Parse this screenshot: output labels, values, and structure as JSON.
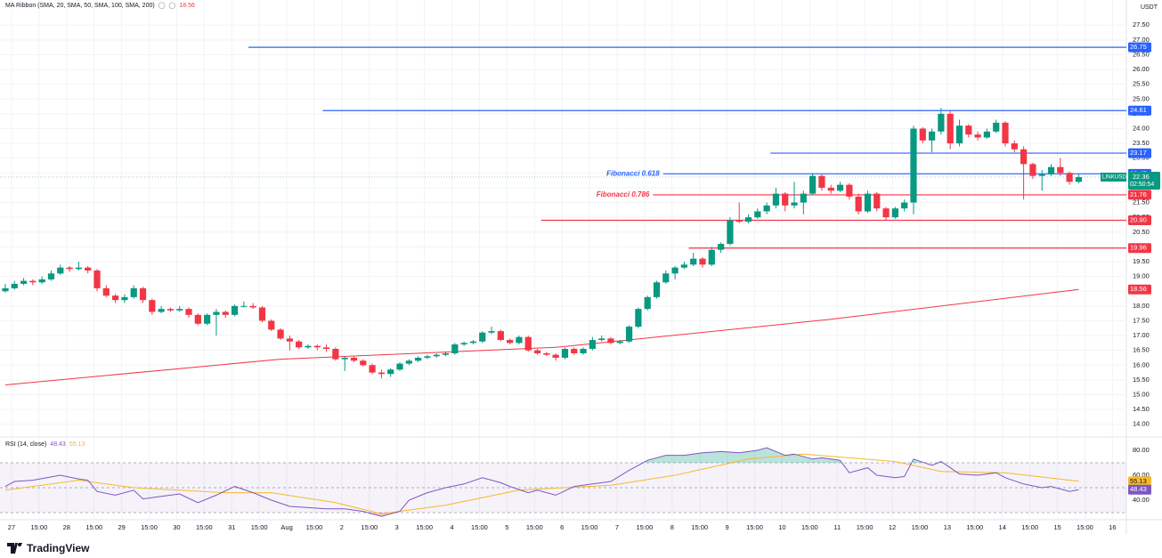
{
  "chart_data": {
    "type": "candlestick",
    "symbol": "LINKUSDT",
    "currency": "USDT",
    "countdown": "02:50:54",
    "indicator_label": "MA Ribbon (SMA, 20, SMA, 50, SMA, 100, SMA, 200)",
    "up_color": "#089981",
    "down_color": "#f23645",
    "grid": true,
    "xlim": [
      -0.58,
      122.2
    ],
    "xticks": [
      {
        "value": 0.68,
        "label": "27"
      },
      {
        "value": 3.68,
        "label": "15:00"
      },
      {
        "value": 6.68,
        "label": "28"
      },
      {
        "value": 9.68,
        "label": "15:00"
      },
      {
        "value": 12.68,
        "label": "29"
      },
      {
        "value": 15.68,
        "label": "15:00"
      },
      {
        "value": 18.68,
        "label": "30"
      },
      {
        "value": 21.68,
        "label": "15:00"
      },
      {
        "value": 24.68,
        "label": "31"
      },
      {
        "value": 27.68,
        "label": "15:00"
      },
      {
        "value": 30.68,
        "label": "Aug"
      },
      {
        "value": 33.68,
        "label": "15:00"
      },
      {
        "value": 36.68,
        "label": "2"
      },
      {
        "value": 39.68,
        "label": "15:00"
      },
      {
        "value": 42.68,
        "label": "3"
      },
      {
        "value": 45.68,
        "label": "15:00"
      },
      {
        "value": 48.68,
        "label": "4"
      },
      {
        "value": 51.68,
        "label": "15:00"
      },
      {
        "value": 54.68,
        "label": "5"
      },
      {
        "value": 57.68,
        "label": "15:00"
      },
      {
        "value": 60.68,
        "label": "6"
      },
      {
        "value": 63.68,
        "label": "15:00"
      },
      {
        "value": 66.68,
        "label": "7"
      },
      {
        "value": 69.68,
        "label": "15:00"
      },
      {
        "value": 72.68,
        "label": "8"
      },
      {
        "value": 75.68,
        "label": "15:00"
      },
      {
        "value": 78.68,
        "label": "9"
      },
      {
        "value": 81.68,
        "label": "15:00"
      },
      {
        "value": 84.68,
        "label": "10"
      },
      {
        "value": 87.68,
        "label": "15:00"
      },
      {
        "value": 90.68,
        "label": "11"
      },
      {
        "value": 93.68,
        "label": "15:00"
      },
      {
        "value": 96.68,
        "label": "12"
      },
      {
        "value": 99.68,
        "label": "15:00"
      },
      {
        "value": 102.68,
        "label": "13"
      },
      {
        "value": 105.68,
        "label": "15:00"
      },
      {
        "value": 108.68,
        "label": "14"
      },
      {
        "value": 111.68,
        "label": "15:00"
      },
      {
        "value": 114.68,
        "label": "15"
      },
      {
        "value": 117.68,
        "label": "15:00"
      },
      {
        "value": 120.68,
        "label": "16"
      }
    ],
    "ylim": [
      13.6,
      28.35
    ],
    "yticks": [
      {
        "value": 27.5,
        "label": "27.50"
      },
      {
        "value": 27,
        "label": "27.00"
      },
      {
        "value": 26.5,
        "label": "26.50"
      },
      {
        "value": 26,
        "label": "26.00"
      },
      {
        "value": 25.5,
        "label": "25.50"
      },
      {
        "value": 25,
        "label": "25.00"
      },
      {
        "value": 24.5,
        "label": "24.50"
      },
      {
        "value": 24,
        "label": "24.00"
      },
      {
        "value": 23.5,
        "label": "23.50"
      },
      {
        "value": 23,
        "label": "23.00"
      },
      {
        "value": 22.5,
        "label": "22.50"
      },
      {
        "value": 22,
        "label": "22.00"
      },
      {
        "value": 21.5,
        "label": "21.50"
      },
      {
        "value": 21,
        "label": "21.00"
      },
      {
        "value": 20.5,
        "label": "20.50"
      },
      {
        "value": 20,
        "label": "20.00"
      },
      {
        "value": 19.5,
        "label": "19.50"
      },
      {
        "value": 19,
        "label": "19.00"
      },
      {
        "value": 18.5,
        "label": "18.50"
      },
      {
        "value": 18,
        "label": "18.00"
      },
      {
        "value": 17.5,
        "label": "17.50"
      },
      {
        "value": 17,
        "label": "17.00"
      },
      {
        "value": 16.5,
        "label": "16.50"
      },
      {
        "value": 16,
        "label": "16.00"
      },
      {
        "value": 15.5,
        "label": "15.50"
      },
      {
        "value": 15,
        "label": "15.00"
      },
      {
        "value": 14.5,
        "label": "14.50"
      },
      {
        "value": 14,
        "label": "14.00"
      }
    ],
    "candles": [
      [
        18.5,
        18.75,
        18.45,
        18.6
      ],
      [
        18.6,
        18.85,
        18.55,
        18.75
      ],
      [
        18.75,
        18.95,
        18.7,
        18.85
      ],
      [
        18.85,
        18.9,
        18.7,
        18.8
      ],
      [
        18.8,
        19.0,
        18.75,
        18.9
      ],
      [
        18.9,
        19.2,
        18.85,
        19.1
      ],
      [
        19.1,
        19.4,
        19.05,
        19.3
      ],
      [
        19.3,
        19.35,
        19.15,
        19.25
      ],
      [
        19.25,
        19.5,
        19.2,
        19.3
      ],
      [
        19.3,
        19.35,
        19.1,
        19.2
      ],
      [
        19.2,
        19.25,
        18.5,
        18.6
      ],
      [
        18.6,
        18.7,
        18.3,
        18.35
      ],
      [
        18.35,
        18.4,
        18.1,
        18.2
      ],
      [
        18.2,
        18.4,
        18.1,
        18.3
      ],
      [
        18.3,
        18.7,
        18.25,
        18.6
      ],
      [
        18.6,
        18.65,
        18.1,
        18.2
      ],
      [
        18.2,
        18.25,
        17.7,
        17.8
      ],
      [
        17.8,
        18.0,
        17.75,
        17.9
      ],
      [
        17.9,
        17.95,
        17.8,
        17.85
      ],
      [
        17.85,
        18.0,
        17.8,
        17.9
      ],
      [
        17.9,
        17.95,
        17.6,
        17.7
      ],
      [
        17.7,
        17.75,
        17.35,
        17.4
      ],
      [
        17.4,
        17.75,
        17.35,
        17.7
      ],
      [
        17.7,
        17.9,
        17.0,
        17.8
      ],
      [
        17.8,
        17.85,
        17.6,
        17.7
      ],
      [
        17.7,
        18.05,
        17.65,
        18.0
      ],
      [
        18.0,
        18.15,
        17.95,
        18.0
      ],
      [
        18.0,
        18.1,
        17.9,
        17.95
      ],
      [
        17.95,
        18.0,
        17.45,
        17.5
      ],
      [
        17.5,
        17.55,
        17.15,
        17.2
      ],
      [
        17.2,
        17.25,
        16.85,
        16.9
      ],
      [
        16.9,
        17.0,
        16.5,
        16.8
      ],
      [
        16.8,
        16.85,
        16.55,
        16.6
      ],
      [
        16.6,
        16.7,
        16.55,
        16.65
      ],
      [
        16.65,
        16.7,
        16.5,
        16.6
      ],
      [
        16.6,
        16.7,
        16.45,
        16.55
      ],
      [
        16.55,
        16.6,
        16.15,
        16.2
      ],
      [
        16.2,
        16.3,
        15.8,
        16.25
      ],
      [
        16.25,
        16.3,
        16.1,
        16.15
      ],
      [
        16.15,
        16.2,
        15.95,
        16.0
      ],
      [
        16.0,
        16.05,
        15.7,
        15.75
      ],
      [
        15.75,
        15.85,
        15.55,
        15.7
      ],
      [
        15.7,
        15.9,
        15.6,
        15.85
      ],
      [
        15.85,
        16.1,
        15.8,
        16.05
      ],
      [
        16.05,
        16.2,
        16.0,
        16.15
      ],
      [
        16.15,
        16.3,
        16.1,
        16.25
      ],
      [
        16.25,
        16.35,
        16.2,
        16.3
      ],
      [
        16.3,
        16.4,
        16.25,
        16.35
      ],
      [
        16.35,
        16.45,
        16.3,
        16.4
      ],
      [
        16.4,
        16.75,
        16.35,
        16.7
      ],
      [
        16.7,
        16.8,
        16.65,
        16.75
      ],
      [
        16.75,
        16.85,
        16.7,
        16.8
      ],
      [
        16.8,
        17.15,
        16.75,
        17.1
      ],
      [
        17.1,
        17.3,
        17.05,
        17.15
      ],
      [
        17.15,
        17.2,
        16.8,
        16.85
      ],
      [
        16.85,
        16.9,
        16.7,
        16.75
      ],
      [
        16.75,
        17.0,
        16.7,
        16.95
      ],
      [
        16.95,
        17.0,
        16.45,
        16.5
      ],
      [
        16.5,
        16.55,
        16.35,
        16.4
      ],
      [
        16.4,
        16.45,
        16.3,
        16.35
      ],
      [
        16.35,
        16.4,
        16.15,
        16.25
      ],
      [
        16.25,
        16.6,
        16.2,
        16.55
      ],
      [
        16.55,
        16.6,
        16.35,
        16.4
      ],
      [
        16.4,
        16.6,
        16.35,
        16.55
      ],
      [
        16.55,
        16.95,
        16.5,
        16.85
      ],
      [
        16.85,
        17.0,
        16.8,
        16.9
      ],
      [
        16.9,
        16.95,
        16.7,
        16.75
      ],
      [
        16.75,
        16.85,
        16.7,
        16.8
      ],
      [
        16.8,
        17.35,
        16.75,
        17.3
      ],
      [
        17.3,
        17.95,
        17.25,
        17.9
      ],
      [
        17.9,
        18.35,
        17.85,
        18.3
      ],
      [
        18.3,
        18.85,
        18.25,
        18.8
      ],
      [
        18.8,
        19.2,
        18.75,
        19.1
      ],
      [
        19.1,
        19.35,
        18.9,
        19.3
      ],
      [
        19.3,
        19.5,
        19.25,
        19.4
      ],
      [
        19.4,
        19.8,
        19.35,
        19.6
      ],
      [
        19.6,
        19.65,
        19.3,
        19.4
      ],
      [
        19.4,
        20.0,
        19.35,
        19.9
      ],
      [
        19.9,
        20.15,
        19.8,
        20.1
      ],
      [
        20.1,
        21.0,
        20.05,
        20.9
      ],
      [
        20.9,
        21.5,
        20.8,
        20.85
      ],
      [
        20.85,
        21.1,
        20.8,
        21.0
      ],
      [
        21.0,
        21.3,
        20.95,
        21.2
      ],
      [
        21.2,
        21.5,
        21.1,
        21.4
      ],
      [
        21.4,
        22.0,
        21.3,
        21.8
      ],
      [
        21.8,
        21.85,
        21.2,
        21.4
      ],
      [
        21.4,
        22.2,
        21.3,
        21.5
      ],
      [
        21.5,
        21.9,
        21.1,
        21.8
      ],
      [
        21.8,
        22.5,
        21.75,
        22.4
      ],
      [
        22.4,
        22.45,
        21.9,
        22.0
      ],
      [
        22.0,
        22.1,
        21.8,
        21.9
      ],
      [
        21.9,
        22.2,
        21.85,
        22.1
      ],
      [
        22.1,
        22.15,
        21.6,
        21.7
      ],
      [
        21.7,
        21.8,
        21.1,
        21.2
      ],
      [
        21.2,
        21.9,
        21.15,
        21.8
      ],
      [
        21.8,
        21.85,
        21.2,
        21.3
      ],
      [
        21.3,
        21.35,
        20.9,
        21.0
      ],
      [
        21.0,
        21.35,
        20.95,
        21.3
      ],
      [
        21.3,
        21.6,
        21.2,
        21.5
      ],
      [
        21.5,
        24.1,
        21.1,
        24.0
      ],
      [
        24.0,
        24.05,
        23.5,
        23.6
      ],
      [
        23.6,
        24.0,
        23.2,
        23.9
      ],
      [
        23.9,
        24.7,
        23.8,
        24.5
      ],
      [
        24.5,
        24.6,
        23.3,
        23.5
      ],
      [
        23.5,
        24.3,
        23.4,
        24.1
      ],
      [
        24.1,
        24.15,
        23.7,
        23.8
      ],
      [
        23.8,
        23.9,
        23.6,
        23.7
      ],
      [
        23.7,
        24.0,
        23.65,
        23.9
      ],
      [
        23.9,
        24.3,
        23.85,
        24.2
      ],
      [
        24.2,
        24.25,
        23.4,
        23.5
      ],
      [
        23.5,
        23.6,
        23.2,
        23.3
      ],
      [
        23.3,
        23.4,
        21.6,
        22.8
      ],
      [
        22.8,
        22.85,
        22.3,
        22.4
      ],
      [
        22.4,
        22.6,
        21.9,
        22.45
      ],
      [
        22.45,
        22.8,
        22.4,
        22.7
      ],
      [
        22.7,
        23.0,
        22.4,
        22.5
      ],
      [
        22.5,
        22.55,
        22.1,
        22.2
      ],
      [
        22.2,
        22.45,
        22.15,
        22.36
      ]
    ],
    "ma": {
      "color": "#f23645",
      "x": [
        0,
        30,
        60,
        90,
        117
      ],
      "values": [
        15.33,
        16.2,
        16.6,
        17.55,
        18.56
      ]
    },
    "levels": [
      {
        "value": 26.75,
        "color": "#2962ff",
        "from": 26.5
      },
      {
        "value": 24.61,
        "color": "#2962ff",
        "from": 34.6
      },
      {
        "value": 23.17,
        "color": "#2962ff",
        "from": 83.4
      },
      {
        "value": 22.47,
        "color": "#2962ff",
        "from": 71.7,
        "name": "Fibonacci 0.618"
      },
      {
        "value": 21.76,
        "color": "#f23645",
        "from": 70.6,
        "name": "Fibonacci 0.786"
      },
      {
        "value": 20.9,
        "value_label": "20.90",
        "color": "#f23645",
        "from": 58.4
      },
      {
        "value": 19.96,
        "color": "#f23645",
        "from": 74.5
      }
    ],
    "rsi": {
      "name": "RSI (14, close)",
      "ylim": [
        25,
        90
      ],
      "yticks": [
        {
          "value": 80,
          "label": "80.00"
        },
        {
          "value": 60,
          "label": "60.00"
        },
        {
          "value": 40,
          "label": "40.00"
        }
      ],
      "bands": [
        70,
        50,
        30
      ],
      "color": "#7e57c2",
      "x": [
        0,
        1,
        3,
        6,
        8,
        9,
        10,
        12,
        14,
        15,
        17,
        19,
        21,
        23,
        25,
        27,
        29,
        31,
        33,
        35,
        37,
        39,
        41,
        43,
        44,
        46,
        48,
        50,
        52,
        54,
        55,
        57,
        58,
        60,
        62,
        64,
        66,
        68,
        70,
        72,
        74,
        76,
        78,
        80,
        82,
        83,
        85,
        86,
        88,
        89,
        91,
        92,
        94,
        95,
        97,
        98,
        99,
        101,
        102,
        104,
        106,
        108,
        109,
        111,
        113,
        114,
        116,
        117
      ],
      "values": [
        51,
        55,
        56,
        60,
        57,
        56,
        47,
        44,
        48,
        41,
        43,
        45,
        38,
        44,
        51,
        46,
        40,
        35,
        34,
        33,
        33,
        31,
        27,
        31,
        40,
        46,
        50,
        53,
        58,
        54,
        51,
        46,
        48,
        44,
        51,
        53,
        55,
        64,
        72,
        76,
        76,
        78,
        79,
        78,
        80,
        82,
        76,
        77,
        73,
        74,
        72,
        62,
        66,
        60,
        58,
        59,
        73,
        68,
        71,
        61,
        60,
        62,
        58,
        53,
        50,
        51,
        47,
        48.43
      ],
      "ma_color": "#f7b92b",
      "ma_x": [
        0,
        8,
        14,
        24,
        29,
        36,
        41,
        48,
        56,
        66,
        73,
        81,
        87,
        97,
        102,
        109,
        117
      ],
      "ma_values": [
        48,
        56,
        50,
        46,
        46,
        38,
        29,
        36,
        48,
        52,
        60,
        73,
        77,
        71,
        63,
        62,
        55.13
      ]
    }
  }
}
